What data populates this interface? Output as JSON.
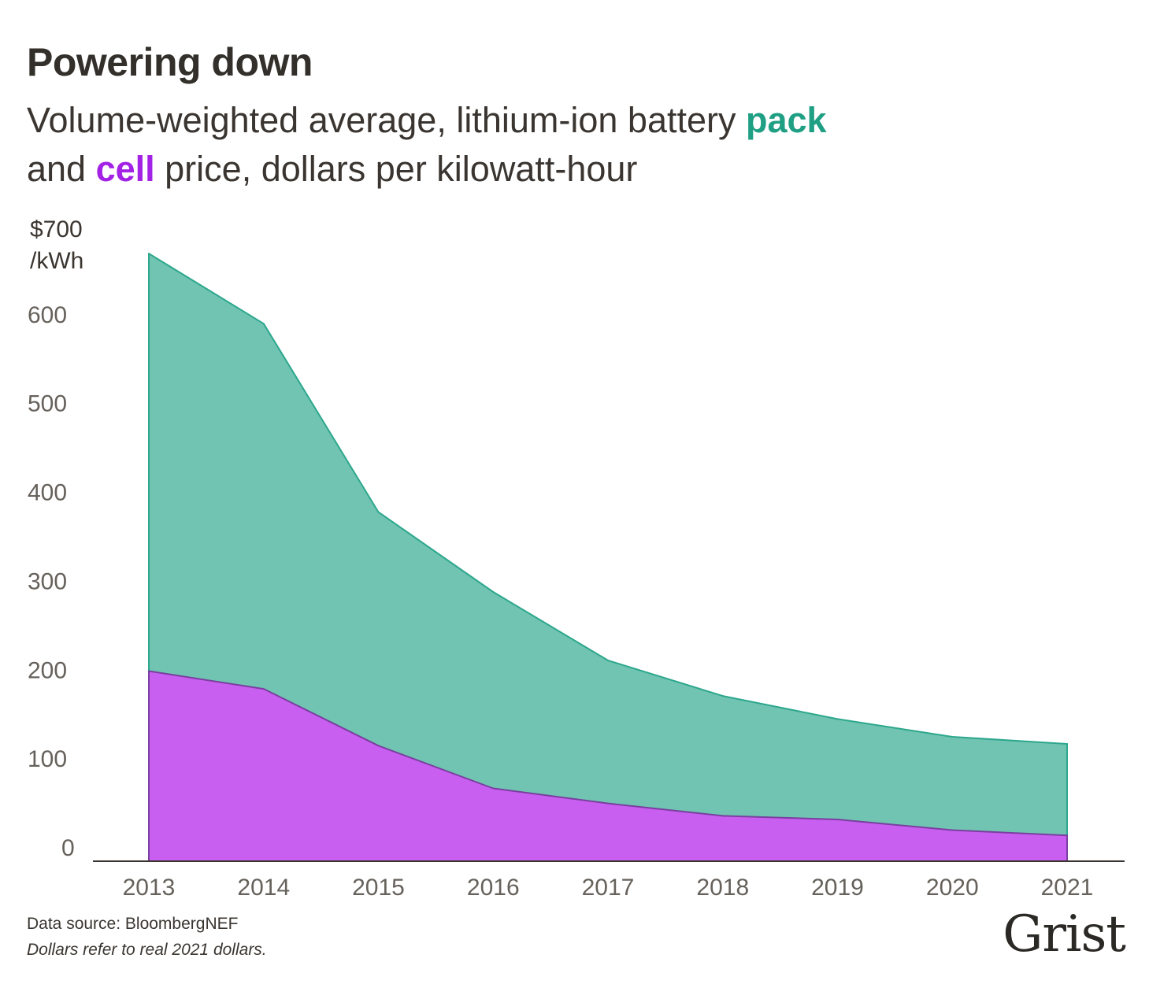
{
  "title": "Powering down",
  "subtitle": {
    "part1": "Volume-weighted average, lithium-ion battery ",
    "pack_word": "pack",
    "part2": "and ",
    "cell_word": "cell",
    "part3": " price, dollars per kilowatt-hour"
  },
  "colors": {
    "pack_fill": "#71c4b1",
    "pack_line": "#2ca78d",
    "pack_text": "#1f9f83",
    "cell_fill": "#c95ff0",
    "cell_line": "#7a3fa0",
    "cell_text": "#a322e6",
    "axis": "#3a3530"
  },
  "chart_data": {
    "type": "area",
    "x": [
      "2013",
      "2014",
      "2015",
      "2016",
      "2017",
      "2018",
      "2019",
      "2020",
      "2021"
    ],
    "series": [
      {
        "name": "pack",
        "values": [
          684,
          605,
          393,
          303,
          226,
          186,
          160,
          140,
          132
        ]
      },
      {
        "name": "cell",
        "values": [
          214,
          194,
          130,
          82,
          65,
          51,
          47,
          35,
          29
        ]
      }
    ],
    "y_unit_top": "$700",
    "y_unit_bottom": "/kWh",
    "y_ticks": [
      "600",
      "500",
      "400",
      "300",
      "200",
      "100",
      "0"
    ],
    "y_tick_values": [
      600,
      500,
      400,
      300,
      200,
      100,
      0
    ],
    "ylim": [
      0,
      700
    ],
    "grid": false,
    "legend": "none"
  },
  "footer": {
    "source": "Data source: BloombergNEF",
    "note": "Dollars refer to real 2021 dollars."
  },
  "logo": "Grist"
}
